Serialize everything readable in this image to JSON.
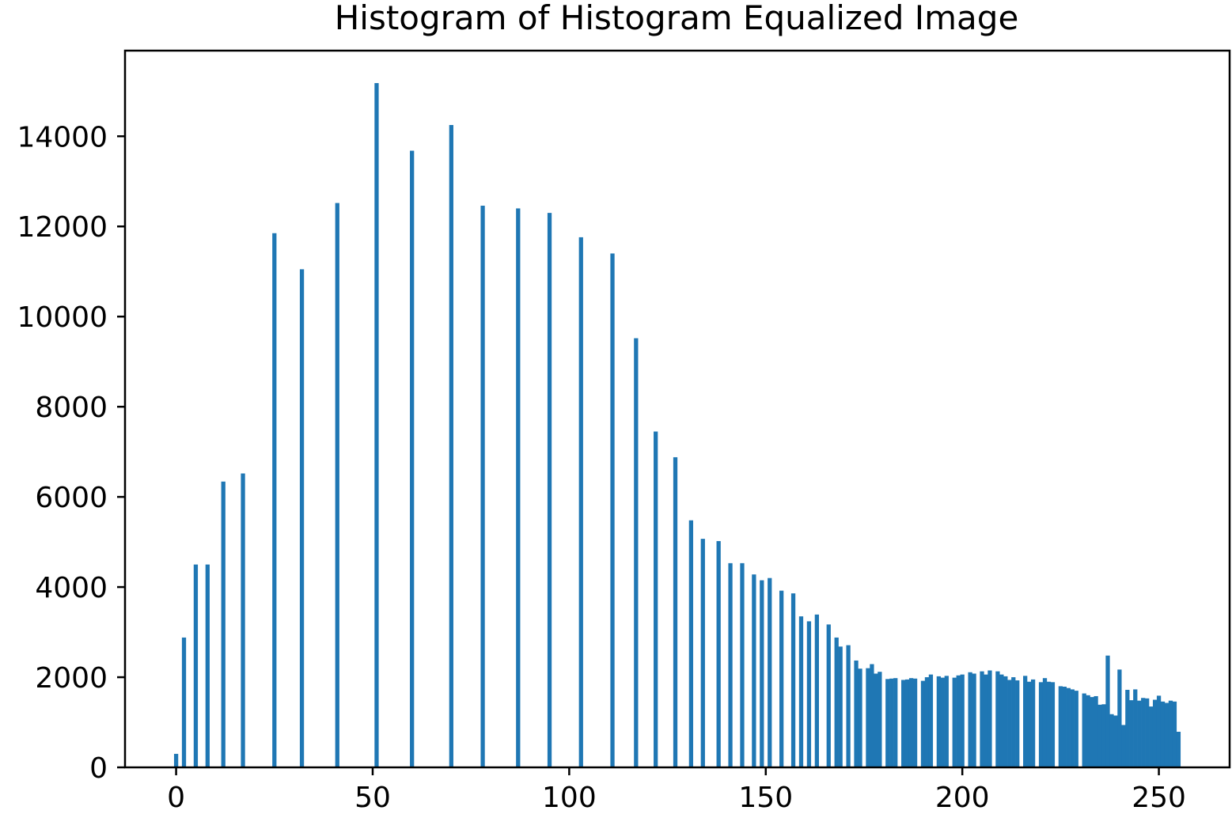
{
  "chart_data": {
    "type": "bar",
    "title": "Histogram of Histogram Equalized Image",
    "xlabel": "",
    "ylabel": "",
    "xlim": [
      -13,
      268
    ],
    "ylim": [
      0,
      15900
    ],
    "xticks": [
      0,
      50,
      100,
      150,
      200,
      250
    ],
    "yticks": [
      0,
      2000,
      4000,
      6000,
      8000,
      10000,
      12000,
      14000
    ],
    "xtick_labels": [
      "0",
      "50",
      "100",
      "150",
      "200",
      "250"
    ],
    "ytick_labels": [
      "0",
      "2000",
      "4000",
      "6000",
      "8000",
      "10000",
      "12000",
      "14000"
    ],
    "bar_color": "#1f77b4",
    "grid": false,
    "legend": "none",
    "bins": [
      [
        0,
        300
      ],
      [
        2,
        2880
      ],
      [
        5,
        4500
      ],
      [
        8,
        4500
      ],
      [
        12,
        6340
      ],
      [
        17,
        6520
      ],
      [
        25,
        11850
      ],
      [
        32,
        11050
      ],
      [
        41,
        12520
      ],
      [
        51,
        15180
      ],
      [
        60,
        13680
      ],
      [
        70,
        14250
      ],
      [
        78,
        12460
      ],
      [
        87,
        12400
      ],
      [
        95,
        12300
      ],
      [
        103,
        11760
      ],
      [
        111,
        11400
      ],
      [
        117,
        9520
      ],
      [
        122,
        7450
      ],
      [
        127,
        6880
      ],
      [
        131,
        5480
      ],
      [
        134,
        5070
      ],
      [
        138,
        5020
      ],
      [
        141,
        4530
      ],
      [
        144,
        4530
      ],
      [
        147,
        4280
      ],
      [
        149,
        4150
      ],
      [
        151,
        4200
      ],
      [
        154,
        3920
      ],
      [
        157,
        3860
      ],
      [
        159,
        3350
      ],
      [
        161,
        3240
      ],
      [
        163,
        3390
      ],
      [
        166,
        3170
      ],
      [
        168,
        2880
      ],
      [
        169,
        2680
      ],
      [
        171,
        2710
      ],
      [
        173,
        2370
      ],
      [
        174,
        2190
      ],
      [
        176,
        2200
      ],
      [
        177,
        2290
      ],
      [
        178,
        2080
      ],
      [
        179,
        2120
      ],
      [
        181,
        1960
      ],
      [
        182,
        1970
      ],
      [
        183,
        1980
      ],
      [
        185,
        1940
      ],
      [
        186,
        1950
      ],
      [
        187,
        1980
      ],
      [
        188,
        1970
      ],
      [
        190,
        1920
      ],
      [
        191,
        2000
      ],
      [
        192,
        2060
      ],
      [
        194,
        2020
      ],
      [
        195,
        1990
      ],
      [
        196,
        2030
      ],
      [
        198,
        1990
      ],
      [
        199,
        2040
      ],
      [
        200,
        2060
      ],
      [
        202,
        2110
      ],
      [
        203,
        2080
      ],
      [
        205,
        2130
      ],
      [
        206,
        2060
      ],
      [
        207,
        2150
      ],
      [
        209,
        2130
      ],
      [
        210,
        2060
      ],
      [
        211,
        2020
      ],
      [
        212,
        1940
      ],
      [
        213,
        2000
      ],
      [
        214,
        1930
      ],
      [
        216,
        2030
      ],
      [
        217,
        1900
      ],
      [
        218,
        1950
      ],
      [
        220,
        1890
      ],
      [
        221,
        1980
      ],
      [
        222,
        1900
      ],
      [
        223,
        1890
      ],
      [
        225,
        1800
      ],
      [
        226,
        1790
      ],
      [
        227,
        1760
      ],
      [
        228,
        1730
      ],
      [
        229,
        1700
      ],
      [
        231,
        1640
      ],
      [
        232,
        1600
      ],
      [
        233,
        1560
      ],
      [
        234,
        1580
      ],
      [
        235,
        1390
      ],
      [
        236,
        1400
      ],
      [
        237,
        2480
      ],
      [
        238,
        1180
      ],
      [
        239,
        1150
      ],
      [
        240,
        2170
      ],
      [
        241,
        940
      ],
      [
        242,
        1720
      ],
      [
        243,
        1490
      ],
      [
        244,
        1730
      ],
      [
        245,
        1480
      ],
      [
        246,
        1540
      ],
      [
        247,
        1530
      ],
      [
        248,
        1350
      ],
      [
        249,
        1500
      ],
      [
        250,
        1590
      ],
      [
        251,
        1460
      ],
      [
        252,
        1430
      ],
      [
        253,
        1480
      ],
      [
        254,
        1460
      ],
      [
        255,
        790
      ]
    ]
  }
}
